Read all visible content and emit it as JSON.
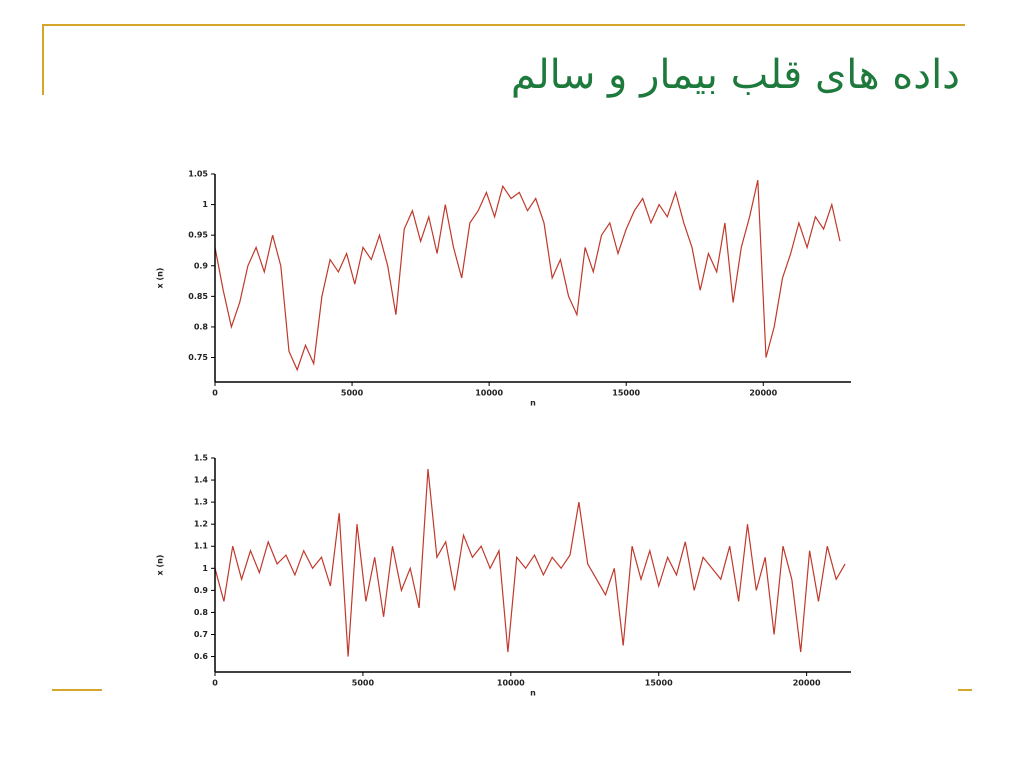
{
  "title": "داده های قلب بیمار و سالم",
  "chart_data": [
    {
      "type": "line",
      "x_label": "n",
      "y_label": "x (n)",
      "color": "#c0392b",
      "xlim": [
        0,
        23200
      ],
      "ylim": [
        0.71,
        1.05
      ],
      "xticks": [
        0,
        5000,
        10000,
        15000,
        20000
      ],
      "yticks": [
        0.75,
        0.8,
        0.85,
        0.9,
        0.95,
        1,
        1.05
      ],
      "x": [
        0,
        300,
        600,
        900,
        1200,
        1500,
        1800,
        2100,
        2400,
        2700,
        3000,
        3300,
        3600,
        3900,
        4200,
        4500,
        4800,
        5100,
        5400,
        5700,
        6000,
        6300,
        6600,
        6900,
        7200,
        7500,
        7800,
        8100,
        8400,
        8700,
        9000,
        9300,
        9600,
        9900,
        10200,
        10500,
        10800,
        11100,
        11400,
        11700,
        12000,
        12300,
        12600,
        12900,
        13200,
        13500,
        13800,
        14100,
        14400,
        14700,
        15000,
        15300,
        15600,
        15900,
        16200,
        16500,
        16800,
        17100,
        17400,
        17700,
        18000,
        18300,
        18600,
        18900,
        19200,
        19500,
        19800,
        20100,
        20400,
        20700,
        21000,
        21300,
        21600,
        21900,
        22200,
        22500,
        22800
      ],
      "values": [
        0.93,
        0.86,
        0.8,
        0.84,
        0.9,
        0.93,
        0.89,
        0.95,
        0.9,
        0.76,
        0.73,
        0.77,
        0.74,
        0.85,
        0.91,
        0.89,
        0.92,
        0.87,
        0.93,
        0.91,
        0.95,
        0.9,
        0.82,
        0.96,
        0.99,
        0.94,
        0.98,
        0.92,
        1.0,
        0.93,
        0.88,
        0.97,
        0.99,
        1.02,
        0.98,
        1.03,
        1.01,
        1.02,
        0.99,
        1.01,
        0.97,
        0.88,
        0.91,
        0.85,
        0.82,
        0.93,
        0.89,
        0.95,
        0.97,
        0.92,
        0.96,
        0.99,
        1.01,
        0.97,
        1.0,
        0.98,
        1.02,
        0.97,
        0.93,
        0.86,
        0.92,
        0.89,
        0.97,
        0.84,
        0.93,
        0.98,
        1.04,
        0.75,
        0.8,
        0.88,
        0.92,
        0.97,
        0.93,
        0.98,
        0.96,
        1.0,
        0.94
      ]
    },
    {
      "type": "line",
      "x_label": "n",
      "y_label": "x (n)",
      "color": "#c0392b",
      "xlim": [
        0,
        21500
      ],
      "ylim": [
        0.53,
        1.5
      ],
      "xticks": [
        0,
        5000,
        10000,
        15000,
        20000
      ],
      "yticks": [
        0.6,
        0.7,
        0.8,
        0.9,
        1,
        1.1,
        1.2,
        1.3,
        1.4,
        1.5
      ],
      "x": [
        0,
        300,
        600,
        900,
        1200,
        1500,
        1800,
        2100,
        2400,
        2700,
        3000,
        3300,
        3600,
        3900,
        4200,
        4500,
        4800,
        5100,
        5400,
        5700,
        6000,
        6300,
        6600,
        6900,
        7200,
        7500,
        7800,
        8100,
        8400,
        8700,
        9000,
        9300,
        9600,
        9900,
        10200,
        10500,
        10800,
        11100,
        11400,
        11700,
        12000,
        12300,
        12600,
        12900,
        13200,
        13500,
        13800,
        14100,
        14400,
        14700,
        15000,
        15300,
        15600,
        15900,
        16200,
        16500,
        16800,
        17100,
        17400,
        17700,
        18000,
        18300,
        18600,
        18900,
        19200,
        19500,
        19800,
        20100,
        20400,
        20700,
        21000,
        21300
      ],
      "values": [
        1.0,
        0.85,
        1.1,
        0.95,
        1.08,
        0.98,
        1.12,
        1.02,
        1.06,
        0.97,
        1.08,
        1.0,
        1.05,
        0.92,
        1.25,
        0.6,
        1.2,
        0.85,
        1.05,
        0.78,
        1.1,
        0.9,
        1.0,
        0.82,
        1.45,
        1.05,
        1.12,
        0.9,
        1.15,
        1.05,
        1.1,
        1.0,
        1.08,
        0.62,
        1.05,
        1.0,
        1.06,
        0.97,
        1.05,
        1.0,
        1.06,
        1.3,
        1.02,
        0.95,
        0.88,
        1.0,
        0.65,
        1.1,
        0.95,
        1.08,
        0.92,
        1.05,
        0.97,
        1.12,
        0.9,
        1.05,
        1.0,
        0.95,
        1.1,
        0.85,
        1.2,
        0.9,
        1.05,
        0.7,
        1.1,
        0.95,
        0.62,
        1.08,
        0.85,
        1.1,
        0.95,
        1.02
      ]
    }
  ]
}
